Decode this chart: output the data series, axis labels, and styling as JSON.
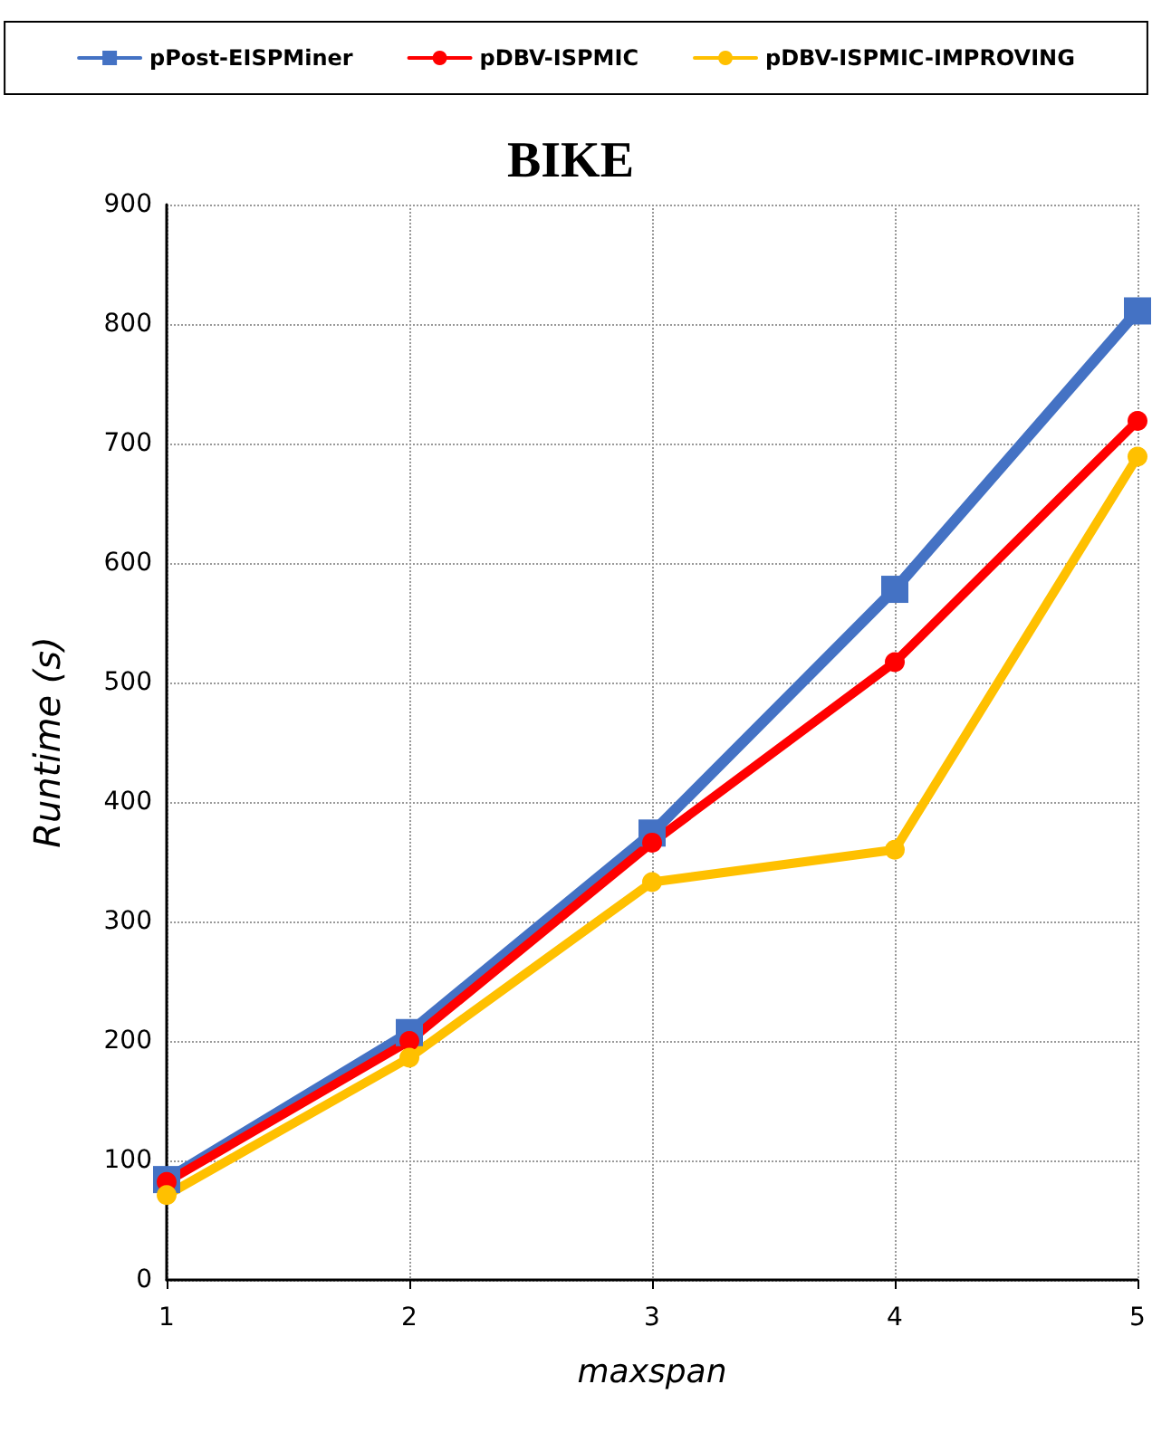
{
  "chart_data": {
    "type": "line",
    "title": "BIKE",
    "xlabel": "maxspan",
    "ylabel": "Runtime (s)",
    "x": [
      1,
      2,
      3,
      4,
      5
    ],
    "xlim": [
      1,
      5
    ],
    "xticks": [
      1,
      2,
      3,
      4,
      5
    ],
    "ylim": [
      0,
      900
    ],
    "yticks": [
      0,
      100,
      200,
      300,
      400,
      500,
      600,
      700,
      800,
      900
    ],
    "grid": true,
    "legend": "top",
    "line_style": "solid",
    "series": [
      {
        "name": "pPost-EISPMiner",
        "color": "#4472c4",
        "marker": "square",
        "values": [
          84,
          207,
          374,
          578,
          811
        ]
      },
      {
        "name": "pDBV-ISPMIC",
        "color": "#ff0000",
        "marker": "circle",
        "values": [
          82,
          200,
          366,
          517,
          719
        ]
      },
      {
        "name": "pDBV-ISPMIC-IMPROVING",
        "color": "#ffc000",
        "marker": "circle",
        "values": [
          71,
          186,
          333,
          360,
          689
        ]
      }
    ]
  }
}
